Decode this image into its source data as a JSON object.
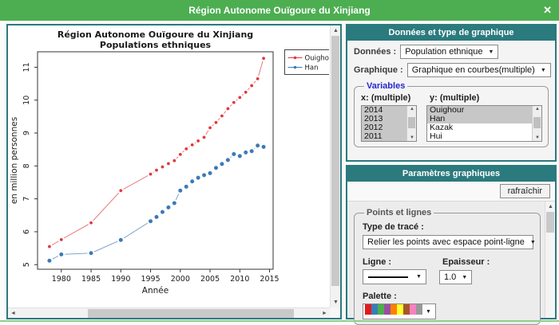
{
  "window": {
    "title": "Région Autonome Ouïgoure du Xinjiang",
    "close_icon": "✕"
  },
  "colors": {
    "titlebar_green": "#4cae51",
    "teal": "#2b7a7e",
    "series_red": "#e0393e",
    "series_blue": "#3d7ab5",
    "bottom_border_green": "#8ccf8e"
  },
  "chart_data": {
    "type": "line",
    "plot_style": "points-connected-with-gaps",
    "title": "Région Autonome Ouïgoure du Xinjiang",
    "subtitle": "Populations ethniques",
    "xlabel": "Année",
    "ylabel": "en million personnes",
    "x": [
      1978,
      1980,
      1985,
      1990,
      1995,
      1996,
      1997,
      1998,
      1999,
      2000,
      2001,
      2002,
      2003,
      2004,
      2005,
      2006,
      2007,
      2008,
      2009,
      2010,
      2011,
      2012,
      2013,
      2014
    ],
    "series": [
      {
        "name": "Ouighour",
        "color": "#e0393e",
        "values": [
          5.55,
          5.76,
          6.27,
          7.25,
          7.75,
          7.87,
          7.97,
          8.07,
          8.16,
          8.35,
          8.52,
          8.64,
          8.76,
          8.87,
          9.16,
          9.32,
          9.52,
          9.74,
          9.93,
          10.08,
          10.24,
          10.44,
          10.65,
          11.27
        ]
      },
      {
        "name": "Han",
        "color": "#3d7ab5",
        "values": [
          5.12,
          5.31,
          5.35,
          5.75,
          6.32,
          6.45,
          6.6,
          6.74,
          6.87,
          7.25,
          7.37,
          7.53,
          7.64,
          7.72,
          7.78,
          7.94,
          8.06,
          8.18,
          8.36,
          8.3,
          8.41,
          8.45,
          8.62,
          8.58
        ]
      }
    ],
    "xlim": [
      1976,
      2015.6
    ],
    "ylim": [
      4.86,
      11.47
    ],
    "xticks": [
      1980,
      1985,
      1990,
      1995,
      2000,
      2005,
      2010,
      2015
    ],
    "yticks": [
      5,
      6,
      7,
      8,
      9,
      10,
      11
    ],
    "legend_position": "top-right-outside",
    "grid": false
  },
  "data_panel": {
    "header": "Données et type de graphique",
    "donnees_label": "Données :",
    "donnees_value": "Population ethnique",
    "graphique_label": "Graphique :",
    "graphique_value": "Graphique en courbes(multiple)",
    "variables_title": "Variables",
    "x_list_label": "x: (multiple)",
    "y_list_label": "y: (multiple)",
    "x_items": [
      {
        "label": "2014",
        "selected": true
      },
      {
        "label": "2013",
        "selected": true
      },
      {
        "label": "2012",
        "selected": true
      },
      {
        "label": "2011",
        "selected": true
      }
    ],
    "y_items": [
      {
        "label": "Ouighour",
        "selected": true
      },
      {
        "label": "Han",
        "selected": true
      },
      {
        "label": "Kazak",
        "selected": false
      },
      {
        "label": "Hui",
        "selected": false
      }
    ]
  },
  "params_panel": {
    "header": "Paramètres graphiques",
    "refresh_button": "rafraîchir",
    "fieldset_title": "Points et lignes",
    "trace_label": "Type de tracé :",
    "trace_value": "Relier les points avec espace point-ligne",
    "ligne_label": "Ligne :",
    "epaisseur_label": "Epaisseur :",
    "epaisseur_value": "1.0",
    "palette_label": "Palette :",
    "palette_colors": [
      "#e41a1c",
      "#377eb8",
      "#4daf4a",
      "#984ea3",
      "#ff7f00",
      "#ffff33",
      "#a65628",
      "#f781bf",
      "#999999"
    ]
  },
  "icons": {
    "dropdown": "▼",
    "scroll_up": "▲",
    "scroll_down": "▼",
    "scroll_left": "◄",
    "scroll_right": "►"
  }
}
